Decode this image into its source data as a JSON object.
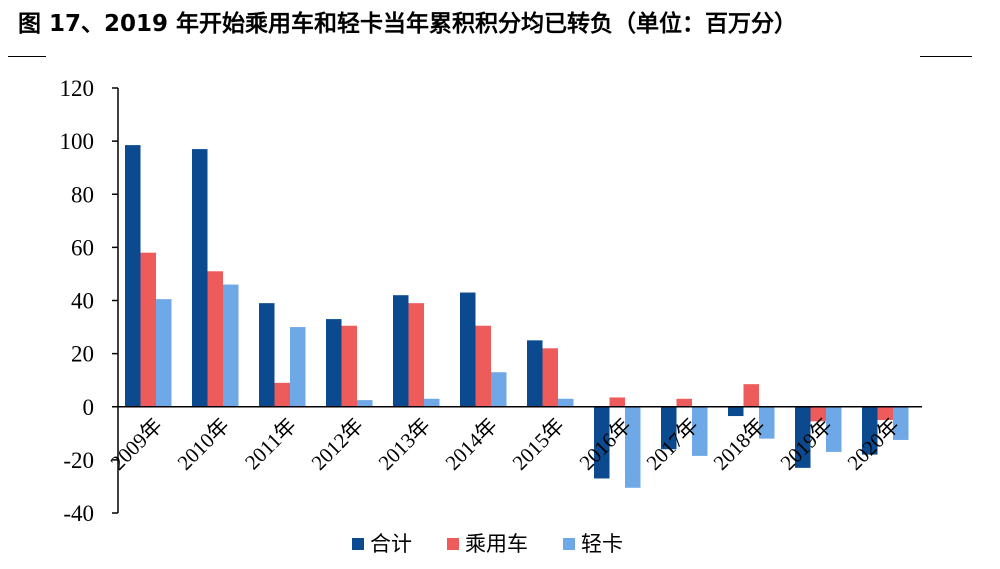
{
  "title": "图 17、2019 年开始乘用车和轻卡当年累积积分均已转负（单位：百万分）",
  "chart_data": {
    "type": "bar",
    "categories": [
      "2009年",
      "2010年",
      "2011年",
      "2012年",
      "2013年",
      "2014年",
      "2015年",
      "2016年",
      "2017年",
      "2018年",
      "2019年",
      "2020年"
    ],
    "series": [
      {
        "name": "合计",
        "color": "#0b4a8f",
        "values": [
          98.5,
          97,
          39,
          33,
          42,
          43,
          25,
          -27,
          -16,
          -3.5,
          -23,
          -18
        ]
      },
      {
        "name": "乘用车",
        "color": "#ee5b5b",
        "values": [
          58,
          51,
          9,
          30.5,
          39,
          30.5,
          22,
          3.5,
          3,
          8.5,
          -5.5,
          -5
        ]
      },
      {
        "name": "轻卡",
        "color": "#6fa8e6",
        "values": [
          40.5,
          46,
          30,
          2.5,
          3,
          13,
          3,
          -30.5,
          -18.5,
          -12,
          -17,
          -12.5
        ]
      }
    ],
    "ylim": [
      -40,
      120
    ],
    "yticks": [
      -40,
      -20,
      0,
      20,
      40,
      60,
      80,
      100,
      120
    ],
    "xlabel": "",
    "ylabel": "",
    "grid": false,
    "legend": "bottom"
  }
}
